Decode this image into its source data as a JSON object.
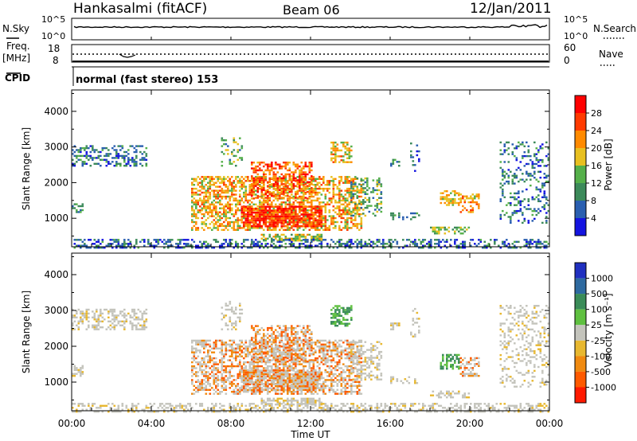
{
  "header": {
    "station": "Hankasalmi (fitACF)",
    "beam": "Beam 06",
    "date": "12/Jan/2011"
  },
  "side_labels": {
    "nsky": "N.Sky",
    "freq": "Freq.",
    "freq_unit": "[MHz]",
    "cpid": "CPID",
    "nsearch": "N.Search",
    "nave": "Nave"
  },
  "cpid_text": "normal (fast stereo) 153",
  "noise_panel": {
    "left_ticks": [
      "10^5",
      "10^0"
    ],
    "right_ticks": [
      "10^5",
      "10^0"
    ]
  },
  "freq_panel": {
    "left_ticks": [
      "18",
      "8"
    ],
    "right_ticks": [
      "60",
      "0"
    ]
  },
  "colors": {
    "power": [
      "#1414e0",
      "#2a5fb0",
      "#3c8a5a",
      "#55b04a",
      "#e8c020",
      "#ff8a00",
      "#ff3a00",
      "#ff0000"
    ],
    "velocity": [
      "#2030c0",
      "#2e6aa0",
      "#3a8c58",
      "#5fc040",
      "#c4c4bc",
      "#e8b830",
      "#f08a10",
      "#ff5a00",
      "#ff1a00"
    ]
  },
  "chart_data": [
    {
      "type": "heatmap",
      "name": "power",
      "ylabel": "Slant Range [km]",
      "yticks": [
        1000,
        2000,
        3000,
        4000
      ],
      "ylim": [
        200,
        4600
      ],
      "xlim": [
        0,
        24
      ],
      "colorbar_label": "Power [dB]",
      "colorbar_ticks": [
        "4",
        "8",
        "12",
        "16",
        "20",
        "24",
        "28"
      ],
      "colorbar_range": [
        0,
        30
      ]
    },
    {
      "type": "heatmap",
      "name": "velocity",
      "ylabel": "Slant Range [km]",
      "yticks": [
        1000,
        2000,
        3000,
        4000
      ],
      "ylim": [
        200,
        4600
      ],
      "xlim": [
        0,
        24
      ],
      "colorbar_label": "Velocity [m s⁻¹]",
      "colorbar_ticks": [
        "1000",
        "500",
        "100",
        "25",
        "-25",
        "-100",
        "-500",
        "-1000"
      ]
    }
  ],
  "xaxis": {
    "label": "Time UT",
    "tick_labels": [
      "00:00",
      "04:00",
      "08:00",
      "12:00",
      "16:00",
      "20:00",
      "00:00"
    ],
    "tick_hours": [
      0,
      4,
      8,
      12,
      16,
      20,
      24
    ]
  }
}
